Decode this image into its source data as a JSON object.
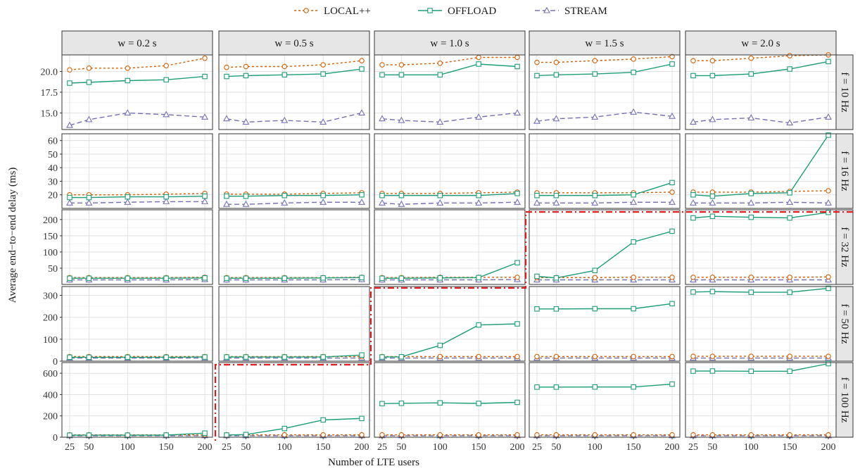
{
  "chart_data": {
    "type": "line",
    "xlabel": "Number of LTE users",
    "ylabel": "Average end−to−end delay (ms)",
    "x": [
      25,
      50,
      100,
      150,
      200
    ],
    "x_ticks": [
      "25",
      "50",
      "100",
      "150",
      "200"
    ],
    "col_facets": [
      "w = 0.2 s",
      "w = 0.5 s",
      "w = 1.0 s",
      "w = 1.5 s",
      "w = 2.0 s"
    ],
    "row_facets": [
      "f = 10 Hz",
      "f = 16 Hz",
      "f = 32 Hz",
      "f = 50 Hz",
      "f = 100 Hz"
    ],
    "series_names": [
      "LOCAL++",
      "OFFLOAD",
      "STREAM"
    ],
    "colors": {
      "LOCAL++": "#d95f02",
      "OFFLOAD": "#1b9e77",
      "STREAM": "#7570b3",
      "boundary": "#e41a1c"
    },
    "legend_position": "top",
    "grid": true,
    "rows": [
      {
        "ylim": [
          13,
          22
        ],
        "yticks": [
          15.0,
          17.5,
          20.0
        ],
        "ytick_labels": [
          "15.0",
          "17.5",
          "20.0"
        ],
        "panels": [
          {
            "LOCAL++": [
              20.2,
              20.4,
              20.4,
              20.7,
              21.6
            ],
            "OFFLOAD": [
              18.6,
              18.7,
              18.9,
              19.0,
              19.4
            ],
            "STREAM": [
              13.5,
              14.2,
              15.0,
              14.8,
              14.5
            ]
          },
          {
            "LOCAL++": [
              20.5,
              20.6,
              20.6,
              20.8,
              21.3
            ],
            "OFFLOAD": [
              19.4,
              19.5,
              19.6,
              19.7,
              20.3
            ],
            "STREAM": [
              14.3,
              13.9,
              14.1,
              13.9,
              15.0
            ]
          },
          {
            "LOCAL++": [
              20.8,
              20.8,
              21.0,
              21.7,
              21.7
            ],
            "OFFLOAD": [
              19.6,
              19.6,
              19.6,
              20.9,
              20.6
            ],
            "STREAM": [
              14.3,
              14.1,
              13.9,
              14.5,
              15.0
            ]
          },
          {
            "LOCAL++": [
              21.1,
              21.1,
              21.3,
              21.5,
              21.8
            ],
            "OFFLOAD": [
              19.5,
              19.6,
              19.7,
              19.9,
              20.9
            ],
            "STREAM": [
              14.0,
              14.3,
              14.5,
              15.1,
              14.6
            ]
          },
          {
            "LOCAL++": [
              21.3,
              21.3,
              21.6,
              21.9,
              22.0
            ],
            "OFFLOAD": [
              19.5,
              19.5,
              19.7,
              20.3,
              21.2
            ],
            "STREAM": [
              13.9,
              14.2,
              14.4,
              13.8,
              14.5
            ]
          }
        ]
      },
      {
        "ylim": [
          10,
          65
        ],
        "yticks": [
          20,
          30,
          40,
          50,
          60
        ],
        "ytick_labels": [
          "20",
          "30",
          "40",
          "50",
          "60"
        ],
        "panels": [
          {
            "LOCAL++": [
              20,
              20,
              20,
              20.5,
              21
            ],
            "OFFLOAD": [
              18,
              18,
              18.5,
              18.5,
              19
            ],
            "STREAM": [
              14,
              14,
              14.5,
              15,
              15
            ]
          },
          {
            "LOCAL++": [
              20.5,
              20.5,
              20.5,
              21,
              21.5
            ],
            "OFFLOAD": [
              19,
              19,
              19.5,
              19.5,
              20
            ],
            "STREAM": [
              13,
              13,
              14,
              14.5,
              14.5
            ]
          },
          {
            "LOCAL++": [
              21,
              21,
              21,
              21.5,
              22
            ],
            "OFFLOAD": [
              19.5,
              19.5,
              19.5,
              19.5,
              21
            ],
            "STREAM": [
              14,
              13,
              14,
              14,
              14.5
            ]
          },
          {
            "LOCAL++": [
              21.5,
              21.5,
              21.5,
              21.5,
              22
            ],
            "OFFLOAD": [
              19.5,
              19.5,
              19.5,
              20,
              29
            ],
            "STREAM": [
              14,
              14,
              14,
              14.5,
              14.5
            ]
          },
          {
            "LOCAL++": [
              22,
              22,
              22,
              22.5,
              23
            ],
            "OFFLOAD": [
              20,
              19,
              21,
              21.5,
              64
            ],
            "STREAM": [
              14,
              14,
              14,
              14.5,
              14
            ]
          }
        ]
      },
      {
        "ylim": [
          0,
          230
        ],
        "yticks": [
          50,
          100,
          150,
          200
        ],
        "ytick_labels": [
          "50",
          "100",
          "150",
          "200"
        ],
        "panels": [
          {
            "LOCAL++": [
              21,
              21,
              21,
              21,
              22
            ],
            "OFFLOAD": [
              19,
              19,
              19,
              19,
              20
            ],
            "STREAM": [
              14,
              14,
              14,
              14,
              15
            ]
          },
          {
            "LOCAL++": [
              21,
              21,
              21,
              21,
              22
            ],
            "OFFLOAD": [
              19,
              19,
              19,
              20,
              21
            ],
            "STREAM": [
              14,
              14,
              14,
              14,
              15
            ]
          },
          {
            "LOCAL++": [
              21,
              21,
              22,
              22,
              22
            ],
            "OFFLOAD": [
              19,
              19,
              20,
              21,
              67
            ],
            "STREAM": [
              14,
              14,
              14,
              14,
              15
            ]
          },
          {
            "LOCAL++": [
              21,
              21,
              21,
              22,
              22
            ],
            "OFFLOAD": [
              25,
              20,
              43,
              131,
              164
            ],
            "STREAM": [
              14,
              14,
              14,
              14,
              14
            ]
          },
          {
            "LOCAL++": [
              22,
              22,
              22,
              22,
              23
            ],
            "OFFLOAD": [
              205,
              210,
              207,
              205,
              222
            ],
            "STREAM": [
              14,
              14,
              14,
              14,
              14
            ]
          }
        ]
      },
      {
        "ylim": [
          0,
          340
        ],
        "yticks": [
          0,
          100,
          200,
          300
        ],
        "ytick_labels": [
          "0",
          "100",
          "200",
          "300"
        ],
        "panels": [
          {
            "LOCAL++": [
              21,
              21,
              21,
              21,
              21
            ],
            "OFFLOAD": [
              18,
              18,
              18,
              18,
              19
            ],
            "STREAM": [
              14,
              14,
              14,
              14,
              14
            ]
          },
          {
            "LOCAL++": [
              21,
              21,
              21,
              21,
              21
            ],
            "OFFLOAD": [
              19,
              19,
              19,
              19,
              28
            ],
            "STREAM": [
              14,
              14,
              14,
              14,
              14
            ]
          },
          {
            "LOCAL++": [
              21,
              21,
              21,
              21,
              21
            ],
            "OFFLOAD": [
              19,
              20,
              72,
              165,
              170
            ],
            "STREAM": [
              14,
              14,
              14,
              14,
              14
            ]
          },
          {
            "LOCAL++": [
              21,
              21,
              21,
              21,
              21
            ],
            "OFFLOAD": [
              238,
              238,
              239,
              239,
              262
            ],
            "STREAM": [
              14,
              14,
              14,
              14,
              14
            ]
          },
          {
            "LOCAL++": [
              22,
              22,
              22,
              22,
              22
            ],
            "OFFLOAD": [
              315,
              317,
              314,
              314,
              332
            ],
            "STREAM": [
              14,
              14,
              14,
              14,
              14
            ]
          }
        ]
      },
      {
        "ylim": [
          0,
          700
        ],
        "yticks": [
          0,
          200,
          400,
          600
        ],
        "ytick_labels": [
          "0",
          "200",
          "400",
          "600"
        ],
        "panels": [
          {
            "LOCAL++": [
              22,
              22,
              22,
              22,
              22
            ],
            "OFFLOAD": [
              19,
              19,
              19,
              20,
              38
            ],
            "STREAM": [
              14,
              14,
              14,
              14,
              14
            ]
          },
          {
            "LOCAL++": [
              22,
              22,
              22,
              22,
              22
            ],
            "OFFLOAD": [
              20,
              25,
              82,
              162,
              176
            ],
            "STREAM": [
              14,
              14,
              14,
              14,
              14
            ]
          },
          {
            "LOCAL++": [
              22,
              22,
              22,
              22,
              22
            ],
            "OFFLOAD": [
              315,
              318,
              322,
              317,
              327
            ],
            "STREAM": [
              14,
              14,
              14,
              14,
              14
            ]
          },
          {
            "LOCAL++": [
              22,
              22,
              22,
              22,
              22
            ],
            "OFFLOAD": [
              470,
              470,
              471,
              471,
              498
            ],
            "STREAM": [
              14,
              14,
              14,
              14,
              14
            ]
          },
          {
            "LOCAL++": [
              22,
              22,
              22,
              22,
              22
            ],
            "OFFLOAD": [
              620,
              621,
              619,
              619,
              690
            ],
            "STREAM": [
              14,
              14,
              14,
              14,
              14
            ]
          }
        ]
      }
    ]
  }
}
